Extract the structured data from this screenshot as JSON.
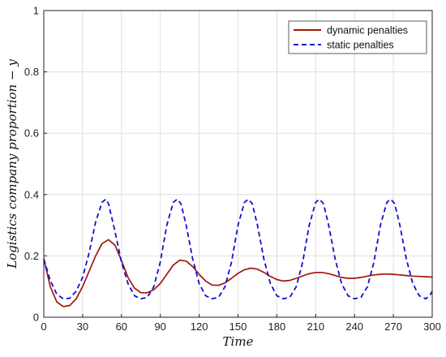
{
  "chart_data": {
    "type": "line",
    "title": "",
    "xlabel": "Time",
    "ylabel": "Logistics company proportion − y",
    "xlim": [
      0,
      300
    ],
    "ylim": [
      0,
      1
    ],
    "xticks": [
      0,
      30,
      60,
      90,
      120,
      150,
      180,
      210,
      240,
      270,
      300
    ],
    "yticks": [
      0,
      0.2,
      0.4,
      0.6,
      0.8,
      1
    ],
    "x_tick_labels": [
      "0",
      "30",
      "60",
      "90",
      "120",
      "150",
      "180",
      "210",
      "240",
      "270",
      "300"
    ],
    "y_tick_labels": [
      "0",
      "0.2",
      "0.4",
      "0.6",
      "0.8",
      "1"
    ],
    "grid": true,
    "legend_position": "top-right",
    "series": [
      {
        "name": "dynamic penalties",
        "color": "#a01808",
        "style": "solid",
        "points": [
          [
            0,
            0.19
          ],
          [
            5,
            0.1
          ],
          [
            10,
            0.05
          ],
          [
            15,
            0.035
          ],
          [
            20,
            0.038
          ],
          [
            25,
            0.06
          ],
          [
            30,
            0.1
          ],
          [
            35,
            0.15
          ],
          [
            40,
            0.2
          ],
          [
            45,
            0.24
          ],
          [
            50,
            0.253
          ],
          [
            55,
            0.235
          ],
          [
            60,
            0.185
          ],
          [
            65,
            0.13
          ],
          [
            70,
            0.095
          ],
          [
            75,
            0.08
          ],
          [
            80,
            0.08
          ],
          [
            85,
            0.09
          ],
          [
            90,
            0.11
          ],
          [
            95,
            0.14
          ],
          [
            100,
            0.17
          ],
          [
            105,
            0.186
          ],
          [
            110,
            0.183
          ],
          [
            115,
            0.165
          ],
          [
            120,
            0.14
          ],
          [
            125,
            0.118
          ],
          [
            130,
            0.105
          ],
          [
            135,
            0.104
          ],
          [
            140,
            0.112
          ],
          [
            145,
            0.127
          ],
          [
            150,
            0.143
          ],
          [
            155,
            0.155
          ],
          [
            160,
            0.16
          ],
          [
            165,
            0.157
          ],
          [
            170,
            0.146
          ],
          [
            175,
            0.133
          ],
          [
            180,
            0.123
          ],
          [
            185,
            0.118
          ],
          [
            190,
            0.12
          ],
          [
            195,
            0.127
          ],
          [
            200,
            0.135
          ],
          [
            205,
            0.142
          ],
          [
            210,
            0.146
          ],
          [
            215,
            0.146
          ],
          [
            220,
            0.142
          ],
          [
            225,
            0.136
          ],
          [
            230,
            0.13
          ],
          [
            235,
            0.127
          ],
          [
            240,
            0.127
          ],
          [
            245,
            0.13
          ],
          [
            250,
            0.134
          ],
          [
            255,
            0.138
          ],
          [
            260,
            0.14
          ],
          [
            265,
            0.141
          ],
          [
            270,
            0.14
          ],
          [
            275,
            0.138
          ],
          [
            280,
            0.136
          ],
          [
            285,
            0.134
          ],
          [
            290,
            0.133
          ],
          [
            295,
            0.132
          ],
          [
            300,
            0.131
          ]
        ]
      },
      {
        "name": "static penalties",
        "color": "#1010d0",
        "style": "dashed",
        "points": [
          [
            0,
            0.19
          ],
          [
            5,
            0.12
          ],
          [
            10,
            0.075
          ],
          [
            15,
            0.06
          ],
          [
            20,
            0.062
          ],
          [
            25,
            0.085
          ],
          [
            30,
            0.13
          ],
          [
            35,
            0.21
          ],
          [
            40,
            0.31
          ],
          [
            45,
            0.375
          ],
          [
            48,
            0.385
          ],
          [
            50,
            0.37
          ],
          [
            55,
            0.28
          ],
          [
            60,
            0.18
          ],
          [
            65,
            0.11
          ],
          [
            70,
            0.07
          ],
          [
            75,
            0.06
          ],
          [
            80,
            0.065
          ],
          [
            85,
            0.1
          ],
          [
            90,
            0.18
          ],
          [
            95,
            0.3
          ],
          [
            100,
            0.375
          ],
          [
            103,
            0.385
          ],
          [
            106,
            0.37
          ],
          [
            110,
            0.3
          ],
          [
            115,
            0.19
          ],
          [
            120,
            0.11
          ],
          [
            125,
            0.07
          ],
          [
            130,
            0.06
          ],
          [
            135,
            0.065
          ],
          [
            140,
            0.1
          ],
          [
            145,
            0.18
          ],
          [
            150,
            0.3
          ],
          [
            155,
            0.375
          ],
          [
            158,
            0.385
          ],
          [
            161,
            0.37
          ],
          [
            165,
            0.3
          ],
          [
            170,
            0.19
          ],
          [
            175,
            0.11
          ],
          [
            180,
            0.07
          ],
          [
            185,
            0.06
          ],
          [
            190,
            0.065
          ],
          [
            195,
            0.1
          ],
          [
            200,
            0.18
          ],
          [
            205,
            0.3
          ],
          [
            210,
            0.375
          ],
          [
            213,
            0.385
          ],
          [
            216,
            0.37
          ],
          [
            220,
            0.3
          ],
          [
            225,
            0.19
          ],
          [
            230,
            0.11
          ],
          [
            235,
            0.07
          ],
          [
            240,
            0.06
          ],
          [
            245,
            0.065
          ],
          [
            250,
            0.1
          ],
          [
            255,
            0.18
          ],
          [
            260,
            0.3
          ],
          [
            265,
            0.375
          ],
          [
            268,
            0.385
          ],
          [
            271,
            0.37
          ],
          [
            275,
            0.3
          ],
          [
            280,
            0.19
          ],
          [
            285,
            0.11
          ],
          [
            290,
            0.07
          ],
          [
            295,
            0.06
          ],
          [
            298,
            0.07
          ],
          [
            300,
            0.085
          ]
        ]
      }
    ]
  }
}
